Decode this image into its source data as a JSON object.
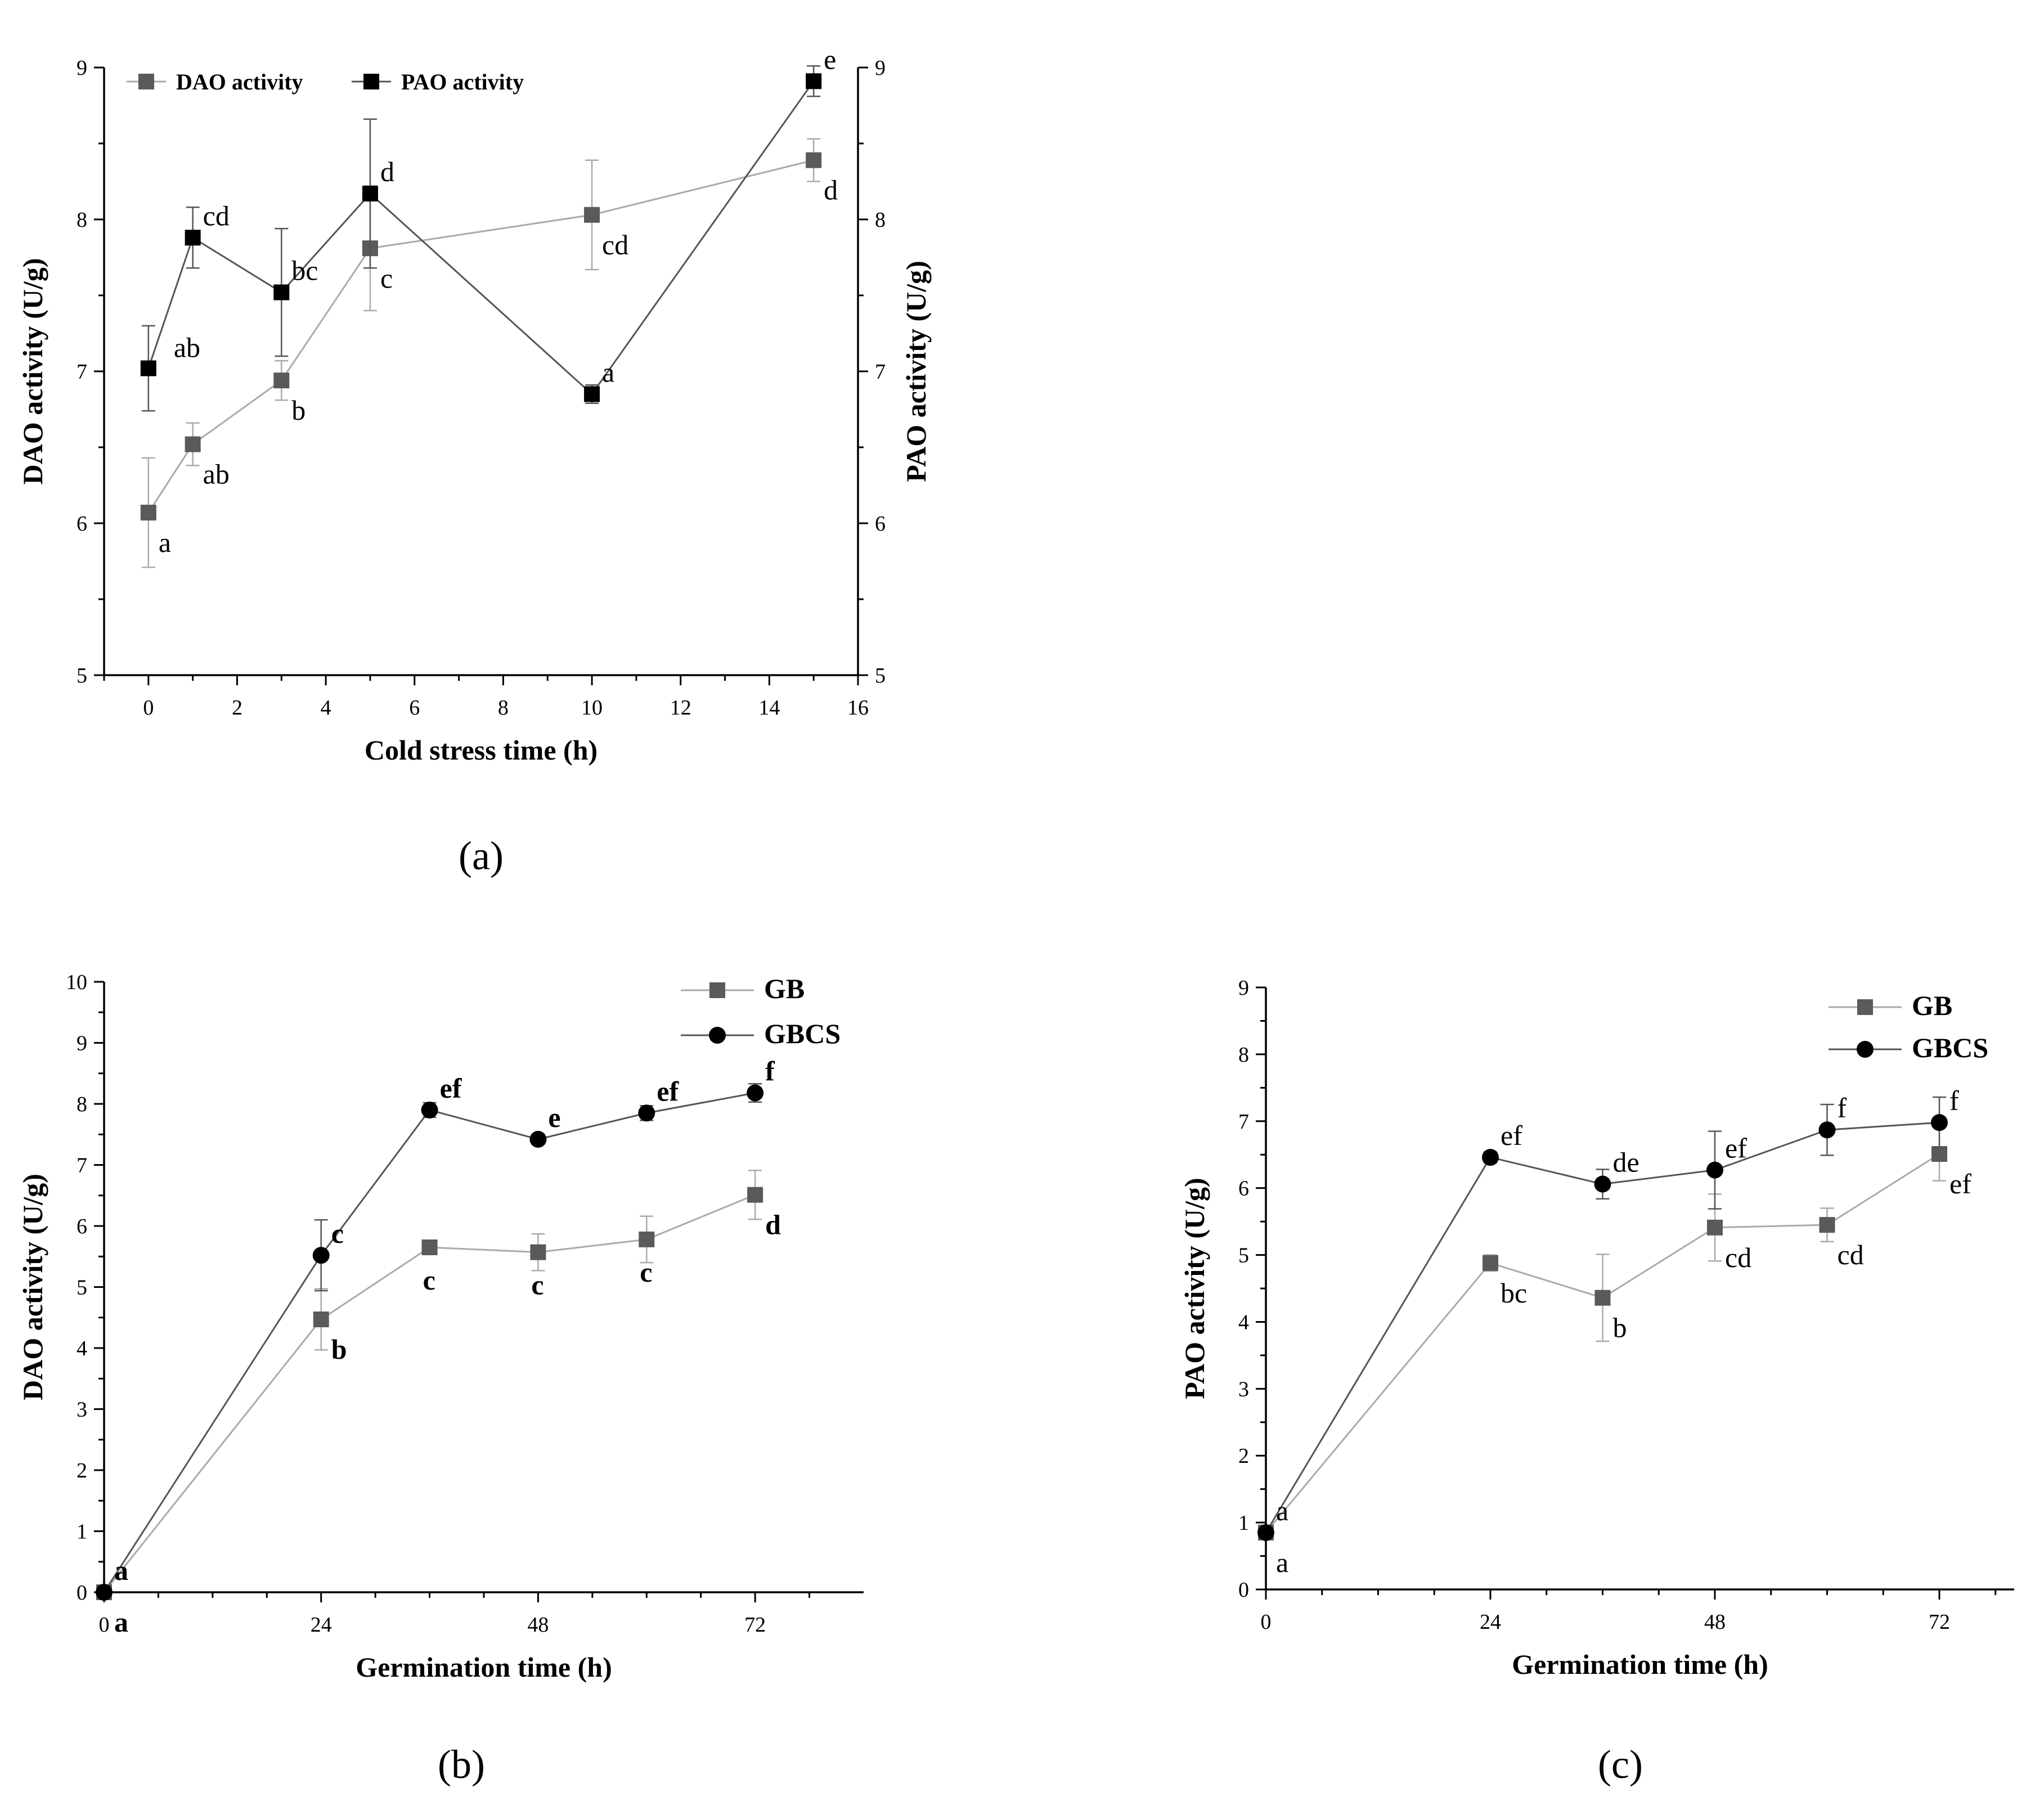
{
  "chart_data": [
    {
      "panel": "(a)",
      "type": "line",
      "xlabel": "Cold stress time (h)",
      "ylabel": "DAO activity (U/g)",
      "ylabel_right": "PAO activity (U/g)",
      "xlim": [
        -1,
        16
      ],
      "ylim": [
        5,
        9
      ],
      "ylim_right": [
        5,
        9
      ],
      "xticks": [
        0,
        2,
        4,
        6,
        8,
        10,
        12,
        14,
        16
      ],
      "yticks": [
        5,
        6,
        7,
        8,
        9
      ],
      "legend_position": "top-left",
      "series": [
        {
          "name": "DAO activity",
          "color": "#5a5a5a",
          "line_color": "#aaaaaa",
          "marker": "square",
          "axis": "left",
          "x": [
            0,
            1,
            3,
            5,
            10,
            15
          ],
          "values": [
            6.07,
            6.52,
            6.94,
            7.81,
            8.03,
            8.39
          ],
          "errors": [
            0.36,
            0.14,
            0.13,
            0.41,
            0.36,
            0.14
          ],
          "labels": [
            "a",
            "ab",
            "b",
            "c",
            "cd",
            "d"
          ]
        },
        {
          "name": "PAO activity",
          "color": "#000000",
          "line_color": "#555555",
          "marker": "square",
          "axis": "right",
          "x": [
            0,
            1,
            3,
            5,
            10,
            15
          ],
          "values": [
            7.02,
            7.88,
            7.52,
            8.17,
            6.85,
            8.91
          ],
          "errors": [
            0.28,
            0.2,
            0.42,
            0.49,
            0.06,
            0.1
          ],
          "labels": [
            "ab",
            "cd",
            "bc",
            "d",
            "a",
            "e"
          ]
        }
      ]
    },
    {
      "panel": "(b)",
      "type": "line",
      "xlabel": "Germination time (h)",
      "ylabel": "DAO activity (U/g)",
      "xlim": [
        0,
        84
      ],
      "ylim": [
        0,
        10
      ],
      "xticks": [
        0,
        24,
        48,
        72
      ],
      "yticks": [
        0,
        1,
        2,
        3,
        4,
        5,
        6,
        7,
        8,
        9,
        10
      ],
      "legend_position": "top-right",
      "series": [
        {
          "name": "GB",
          "color": "#5a5a5a",
          "line_color": "#aaaaaa",
          "marker": "square",
          "x": [
            0,
            24,
            36,
            48,
            60,
            72
          ],
          "values": [
            0,
            4.47,
            5.65,
            5.57,
            5.78,
            6.51
          ],
          "errors": [
            0,
            0.5,
            0.1,
            0.3,
            0.38,
            0.4
          ],
          "labels": [
            "a",
            "b",
            "c",
            "c",
            "c",
            "d"
          ]
        },
        {
          "name": "GBCS",
          "color": "#000000",
          "line_color": "#555555",
          "marker": "circle",
          "x": [
            0,
            24,
            36,
            48,
            60,
            72
          ],
          "values": [
            0,
            5.52,
            7.9,
            7.42,
            7.85,
            8.18
          ],
          "errors": [
            0,
            0.58,
            0.12,
            0.08,
            0.12,
            0.15
          ],
          "labels": [
            "a",
            "c",
            "ef",
            "e",
            "ef",
            "f"
          ]
        }
      ]
    },
    {
      "panel": "(c)",
      "type": "line",
      "xlabel": "Germination time (h)",
      "ylabel": "PAO activity (U/g)",
      "xlim": [
        0,
        80
      ],
      "ylim": [
        0,
        9
      ],
      "xticks": [
        0,
        24,
        48,
        72
      ],
      "yticks": [
        0,
        1,
        2,
        3,
        4,
        5,
        6,
        7,
        8,
        9
      ],
      "legend_position": "top-right",
      "series": [
        {
          "name": "GB",
          "color": "#5a5a5a",
          "line_color": "#aaaaaa",
          "marker": "square",
          "x": [
            0,
            24,
            36,
            48,
            60,
            72
          ],
          "values": [
            0.85,
            4.88,
            4.36,
            5.41,
            5.45,
            6.51
          ],
          "errors": [
            0.05,
            0.12,
            0.65,
            0.5,
            0.25,
            0.4
          ],
          "labels": [
            "a",
            "bc",
            "b",
            "cd",
            "cd",
            "ef"
          ]
        },
        {
          "name": "GBCS",
          "color": "#000000",
          "line_color": "#555555",
          "marker": "circle",
          "x": [
            0,
            24,
            36,
            48,
            60,
            72
          ],
          "values": [
            0.85,
            6.46,
            6.06,
            6.27,
            6.87,
            6.98
          ],
          "errors": [
            0.05,
            0.08,
            0.22,
            0.58,
            0.38,
            0.38
          ],
          "labels": [
            "a",
            "ef",
            "de",
            "ef",
            "f",
            "f"
          ]
        }
      ]
    }
  ]
}
